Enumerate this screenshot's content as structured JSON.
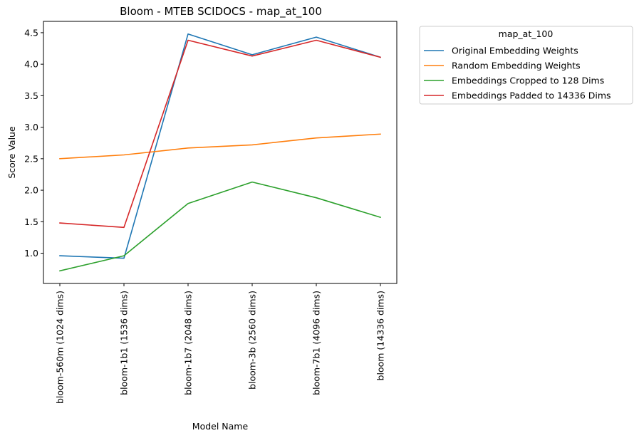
{
  "chart_data": {
    "type": "line",
    "title": "Bloom - MTEB SCIDOCS - map_at_100",
    "xlabel": "Model Name",
    "ylabel": "Score Value",
    "categories": [
      "bloom-560m (1024 dims)",
      "bloom-1b1 (1536 dims)",
      "bloom-1b7 (2048 dims)",
      "bloom-3b (2560 dims)",
      "bloom-7b1 (4096 dims)",
      "bloom (14336 dims)"
    ],
    "yticks": [
      "1.0",
      "1.5",
      "2.0",
      "2.5",
      "3.0",
      "3.5",
      "4.0",
      "4.5"
    ],
    "ylim": [
      0.52,
      4.68
    ],
    "grid": false,
    "legend": {
      "title": "map_at_100",
      "placement": "outside-top-right"
    },
    "series": [
      {
        "name": "Original Embedding Weights",
        "color": "#1f77b4",
        "values": [
          0.96,
          0.92,
          4.48,
          4.15,
          4.43,
          4.11
        ]
      },
      {
        "name": "Random Embedding Weights",
        "color": "#ff7f0e",
        "values": [
          2.5,
          2.56,
          2.67,
          2.72,
          2.83,
          2.89
        ]
      },
      {
        "name": "Embeddings Cropped to 128 Dims",
        "color": "#2ca02c",
        "values": [
          0.72,
          0.96,
          1.79,
          2.13,
          1.88,
          1.57
        ]
      },
      {
        "name": "Embeddings Padded to 14336 Dims",
        "color": "#d62728",
        "values": [
          1.48,
          1.41,
          4.38,
          4.13,
          4.38,
          4.11
        ]
      }
    ]
  }
}
